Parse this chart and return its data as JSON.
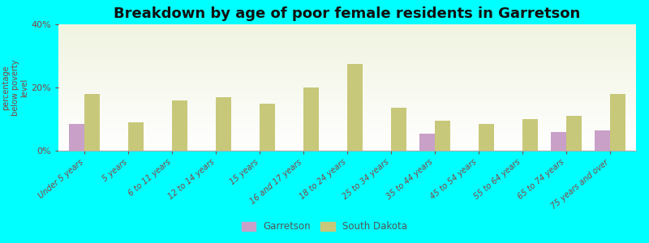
{
  "title": "Breakdown by age of poor female residents in Garretson",
  "ylabel": "percentage\nbelow poverty\nlevel",
  "categories": [
    "Under 5 years",
    "5 years",
    "6 to 11 years",
    "12 to 14 years",
    "15 years",
    "16 and 17 years",
    "18 to 24 years",
    "25 to 34 years",
    "35 to 44 years",
    "45 to 54 years",
    "55 to 64 years",
    "65 to 74 years",
    "75 years and over"
  ],
  "garretson": [
    8.5,
    0,
    0,
    0,
    0,
    0,
    0,
    0,
    5.5,
    0,
    0,
    6.0,
    6.5
  ],
  "south_dakota": [
    18.0,
    9.0,
    16.0,
    17.0,
    15.0,
    20.0,
    27.5,
    13.5,
    9.5,
    8.5,
    10.0,
    11.0,
    18.0
  ],
  "garretson_color": "#c8a0c8",
  "south_dakota_color": "#c8c87a",
  "background_color": "#00ffff",
  "ylim": [
    0,
    40
  ],
  "yticks": [
    0,
    20,
    40
  ],
  "ytick_labels": [
    "0%",
    "20%",
    "40%"
  ],
  "bar_width": 0.35,
  "title_fontsize": 13,
  "label_fontsize": 7.0,
  "legend_garretson": "Garretson",
  "legend_south_dakota": "South Dakota"
}
